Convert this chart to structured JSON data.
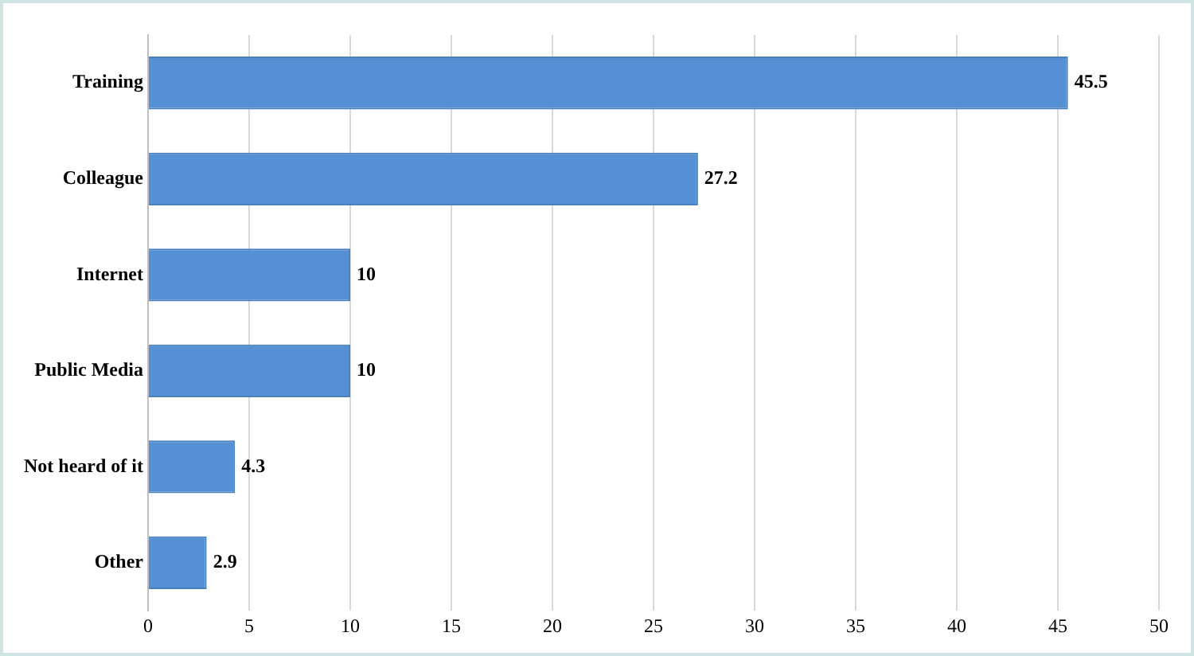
{
  "chart_data": {
    "type": "bar",
    "orientation": "horizontal",
    "categories": [
      "Training",
      "Colleague",
      "Internet",
      "Public Media",
      "Not heard of it",
      "Other"
    ],
    "values": [
      45.5,
      27.2,
      10,
      10,
      4.3,
      2.9
    ],
    "color": "#5590d4",
    "xlim": [
      0,
      50
    ],
    "xticks": [
      0,
      5,
      10,
      15,
      20,
      25,
      30,
      35,
      40,
      45,
      50
    ],
    "grid": "x",
    "legend": false,
    "data_labels": true
  }
}
